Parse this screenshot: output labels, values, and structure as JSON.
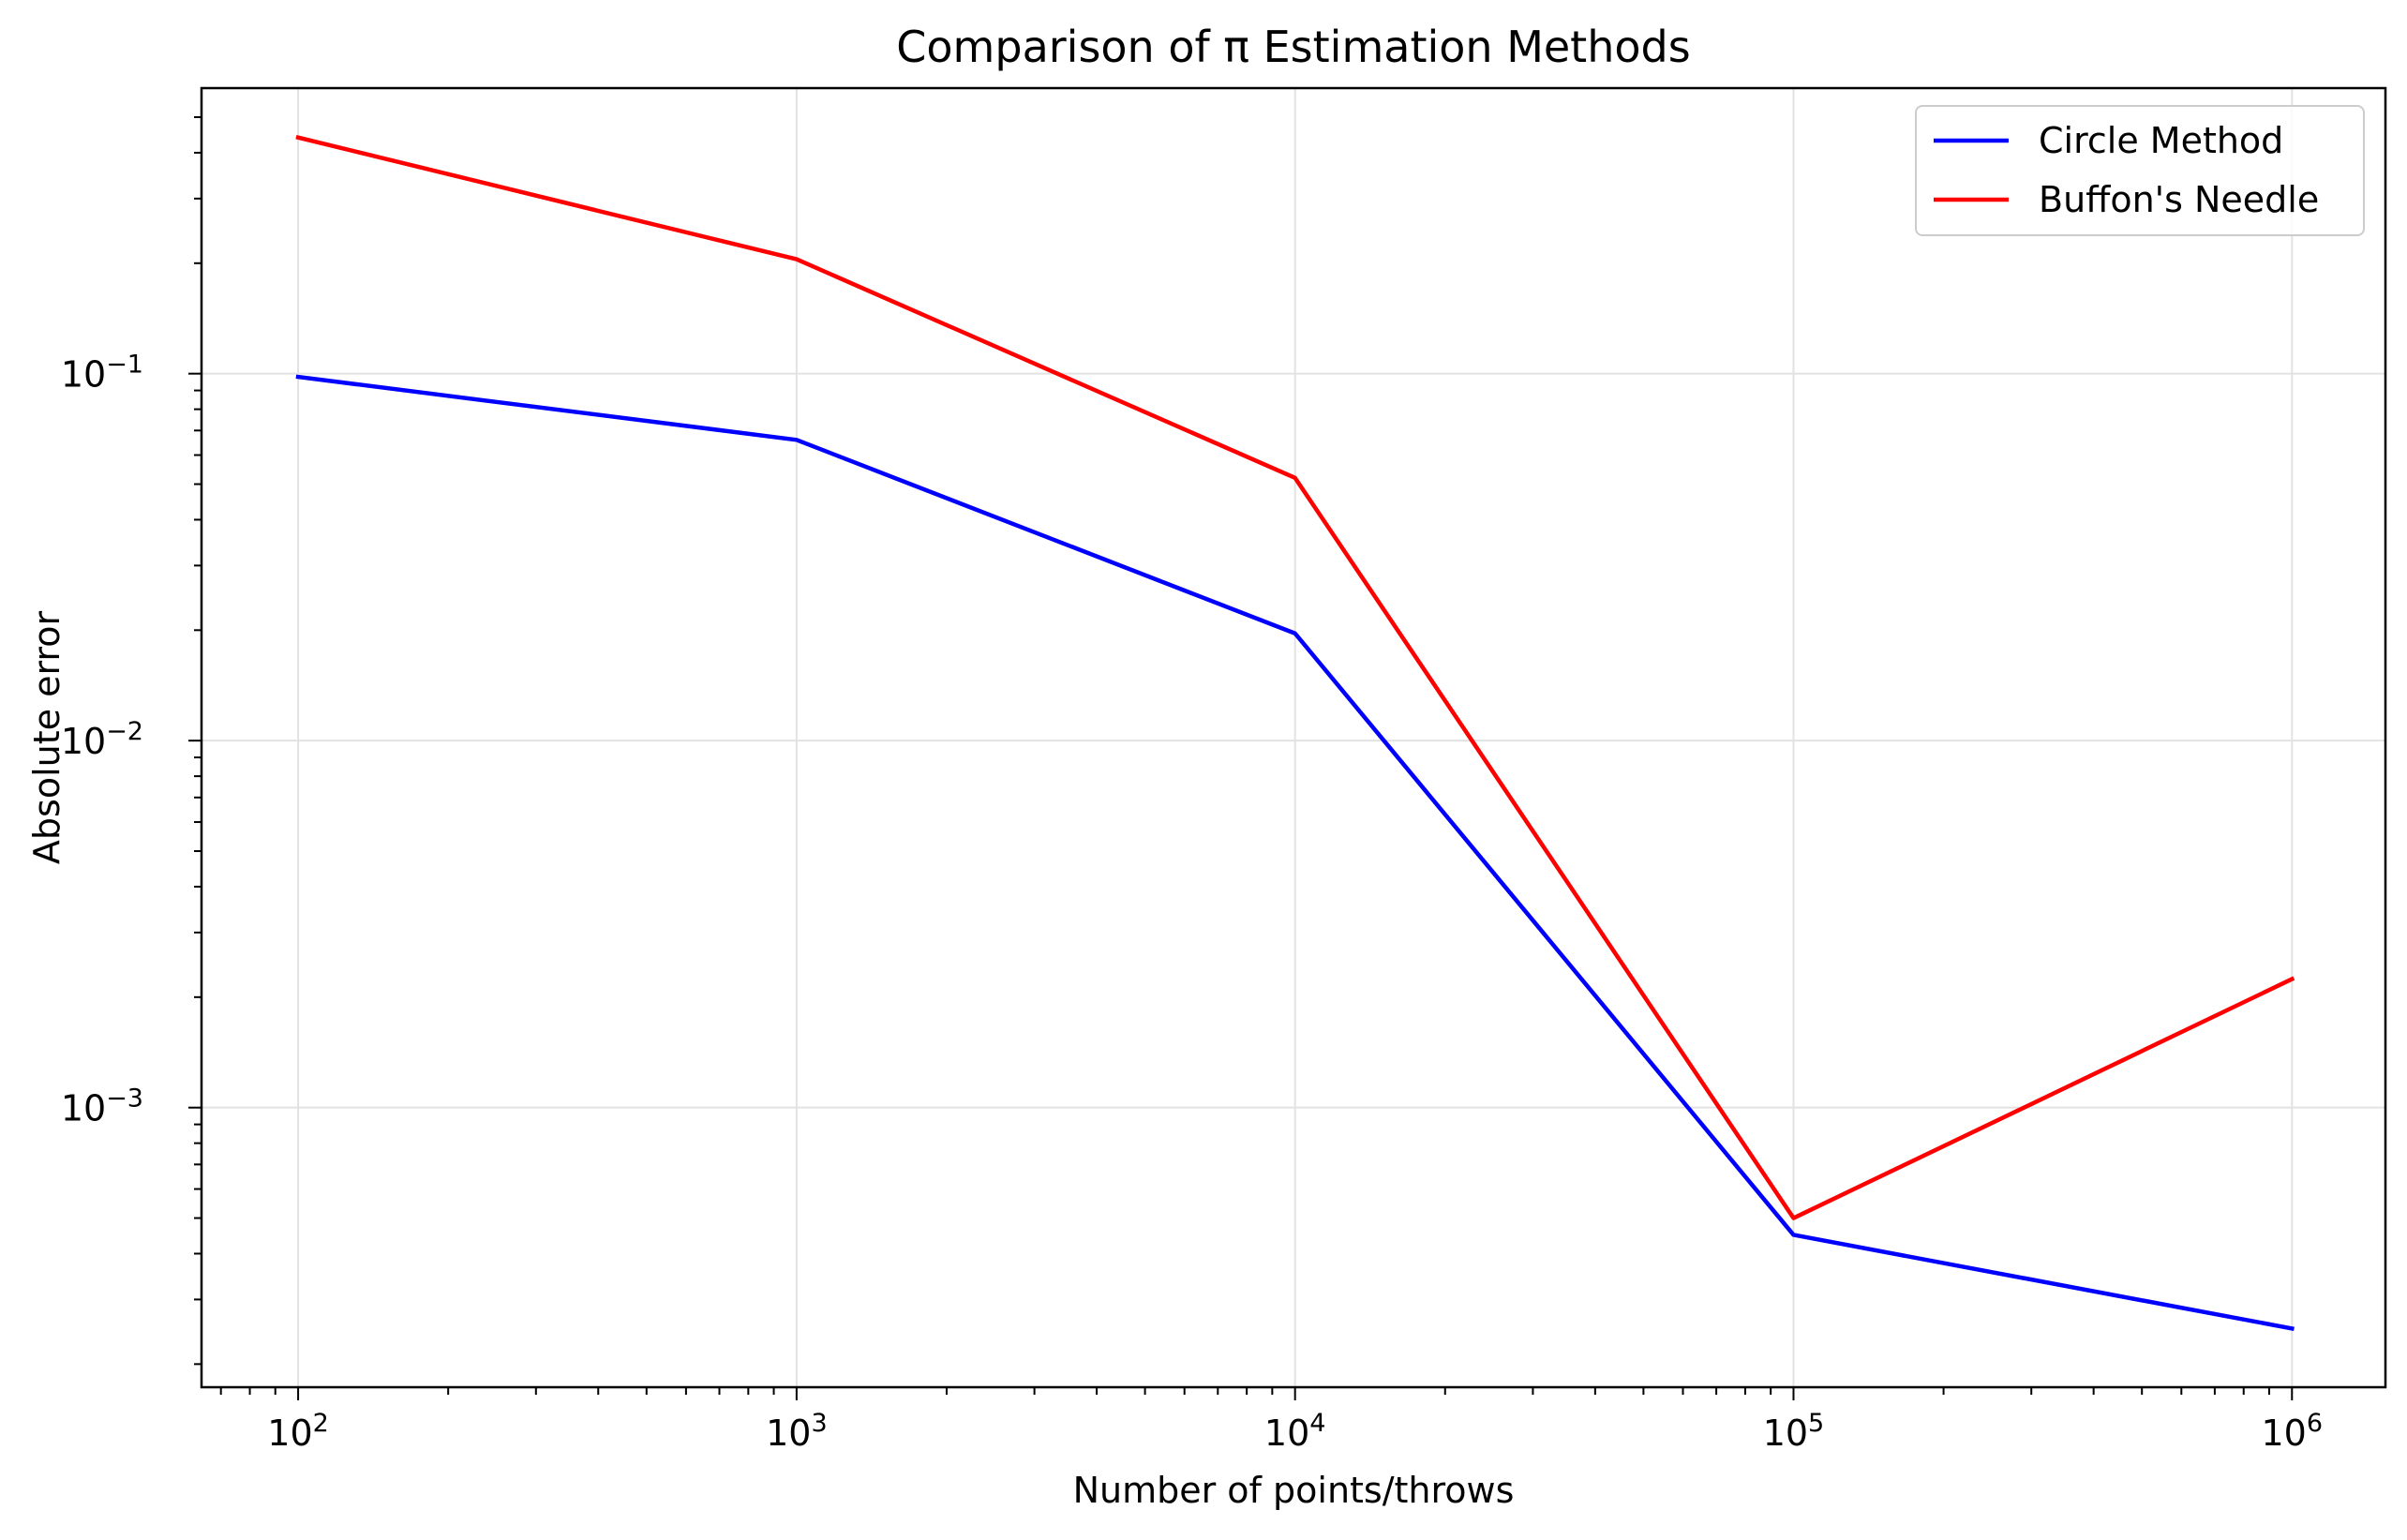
{
  "chart_data": {
    "type": "line",
    "title": "Comparison of π Estimation Methods",
    "xlabel": "Number of points/throws",
    "ylabel": "Absolute error",
    "x_scale": "log",
    "y_scale": "log",
    "x": [
      100,
      1000,
      10000,
      100000,
      1000000
    ],
    "xlim": [
      64,
      1540000
    ],
    "ylim": [
      0.000173,
      0.6
    ],
    "xticks": [
      {
        "base": "10",
        "exp": "2",
        "value": 100
      },
      {
        "base": "10",
        "exp": "3",
        "value": 1000
      },
      {
        "base": "10",
        "exp": "4",
        "value": 10000
      },
      {
        "base": "10",
        "exp": "5",
        "value": 100000
      },
      {
        "base": "10",
        "exp": "6",
        "value": 1000000
      }
    ],
    "yticks": [
      {
        "base": "10",
        "exp": "−3",
        "value": 0.001
      },
      {
        "base": "10",
        "exp": "−2",
        "value": 0.01
      },
      {
        "base": "10",
        "exp": "−1",
        "value": 0.1
      }
    ],
    "grid": true,
    "legend_position": "top-right",
    "series": [
      {
        "name": "Circle Method",
        "color": "#0000ff",
        "values": [
          0.098,
          0.066,
          0.0196,
          0.00045,
          0.00025
        ]
      },
      {
        "name": "Buffon's Needle",
        "color": "#ff0000",
        "values": [
          0.44,
          0.205,
          0.052,
          0.0005,
          0.00224
        ]
      }
    ]
  }
}
